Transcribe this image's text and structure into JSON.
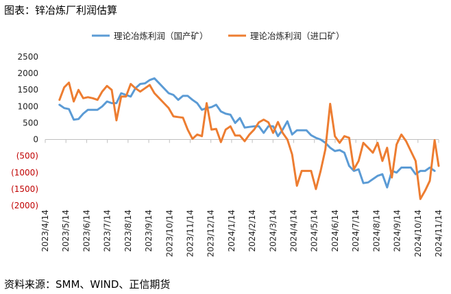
{
  "caption": "图表：锌冶炼厂利润估算",
  "source": "资料来源：SMM、WIND、正信期货",
  "chart_data": {
    "type": "line",
    "title": "",
    "xlabel": "",
    "ylabel": "",
    "ylim": [
      -2000,
      2500
    ],
    "ytick_values": [
      2500,
      2000,
      1500,
      1000,
      500,
      0,
      -500,
      -1000,
      -1500,
      -2000
    ],
    "ytick_labels": [
      "2500",
      "2000",
      "1500",
      "1000",
      "500",
      "0",
      "(500)",
      "(1000)",
      "(1500)",
      "(2000)"
    ],
    "xtick_labels": [
      "2023/4/14",
      "2023/5/14",
      "2023/6/14",
      "2023/7/14",
      "2023/8/14",
      "2023/9/14",
      "2023/10/14",
      "2023/11/14",
      "2023/12/14",
      "2024/1/14",
      "2024/2/14",
      "2024/3/14",
      "2024/4/14",
      "2024/5/14",
      "2024/6/14",
      "2024/7/14",
      "2024/8/14",
      "2024/9/14",
      "2024/10/14",
      "2024/11/14"
    ],
    "grid": false,
    "legend_position": "top-center",
    "series": [
      {
        "name": "理论冶炼利润（国产矿）",
        "color": "#5b9bd5",
        "points": [
          [
            "2023-05-05",
            1050
          ],
          [
            "2023-05-12",
            950
          ],
          [
            "2023-05-19",
            920
          ],
          [
            "2023-05-26",
            600
          ],
          [
            "2023-06-02",
            620
          ],
          [
            "2023-06-09",
            780
          ],
          [
            "2023-06-16",
            900
          ],
          [
            "2023-06-23",
            900
          ],
          [
            "2023-06-30",
            900
          ],
          [
            "2023-07-07",
            1000
          ],
          [
            "2023-07-14",
            1150
          ],
          [
            "2023-07-21",
            1100
          ],
          [
            "2023-07-28",
            1100
          ],
          [
            "2023-08-04",
            1400
          ],
          [
            "2023-08-11",
            1350
          ],
          [
            "2023-08-18",
            1300
          ],
          [
            "2023-08-25",
            1550
          ],
          [
            "2023-09-01",
            1680
          ],
          [
            "2023-09-08",
            1700
          ],
          [
            "2023-09-15",
            1800
          ],
          [
            "2023-09-22",
            1850
          ],
          [
            "2023-09-29",
            1700
          ],
          [
            "2023-10-06",
            1550
          ],
          [
            "2023-10-13",
            1400
          ],
          [
            "2023-10-20",
            1350
          ],
          [
            "2023-10-27",
            1200
          ],
          [
            "2023-11-03",
            1320
          ],
          [
            "2023-11-10",
            1320
          ],
          [
            "2023-11-17",
            1200
          ],
          [
            "2023-11-24",
            1100
          ],
          [
            "2023-12-01",
            900
          ],
          [
            "2023-12-08",
            950
          ],
          [
            "2023-12-15",
            980
          ],
          [
            "2023-12-22",
            1050
          ],
          [
            "2023-12-29",
            850
          ],
          [
            "2024-01-05",
            780
          ],
          [
            "2024-01-12",
            750
          ],
          [
            "2024-01-19",
            500
          ],
          [
            "2024-01-26",
            650
          ],
          [
            "2024-02-02",
            360
          ],
          [
            "2024-02-09",
            380
          ],
          [
            "2024-02-16",
            400
          ],
          [
            "2024-02-23",
            400
          ],
          [
            "2024-03-01",
            200
          ],
          [
            "2024-03-08",
            400
          ],
          [
            "2024-03-15",
            400
          ],
          [
            "2024-03-22",
            100
          ],
          [
            "2024-03-29",
            300
          ],
          [
            "2024-04-05",
            550
          ],
          [
            "2024-04-12",
            150
          ],
          [
            "2024-04-19",
            280
          ],
          [
            "2024-04-26",
            280
          ],
          [
            "2024-05-03",
            280
          ],
          [
            "2024-05-10",
            130
          ],
          [
            "2024-05-17",
            50
          ],
          [
            "2024-05-24",
            0
          ],
          [
            "2024-05-31",
            -100
          ],
          [
            "2024-06-07",
            -250
          ],
          [
            "2024-06-14",
            -350
          ],
          [
            "2024-06-21",
            -320
          ],
          [
            "2024-06-28",
            -400
          ],
          [
            "2024-07-05",
            -800
          ],
          [
            "2024-07-12",
            -950
          ],
          [
            "2024-07-19",
            -900
          ],
          [
            "2024-07-26",
            -1320
          ],
          [
            "2024-08-02",
            -1300
          ],
          [
            "2024-08-09",
            -1200
          ],
          [
            "2024-08-16",
            -1100
          ],
          [
            "2024-08-23",
            -1050
          ],
          [
            "2024-08-30",
            -1450
          ],
          [
            "2024-09-06",
            -950
          ],
          [
            "2024-09-13",
            -1000
          ],
          [
            "2024-09-20",
            -850
          ],
          [
            "2024-09-27",
            -850
          ],
          [
            "2024-10-04",
            -850
          ],
          [
            "2024-10-11",
            -1050
          ],
          [
            "2024-10-18",
            -950
          ],
          [
            "2024-10-25",
            -950
          ],
          [
            "2024-11-01",
            -850
          ],
          [
            "2024-11-08",
            -950
          ]
        ]
      },
      {
        "name": "理论冶炼利润（进口矿）",
        "color": "#ed7d31",
        "points": [
          [
            "2023-05-05",
            1200
          ],
          [
            "2023-05-12",
            1580
          ],
          [
            "2023-05-19",
            1720
          ],
          [
            "2023-05-26",
            1150
          ],
          [
            "2023-06-02",
            1500
          ],
          [
            "2023-06-09",
            1250
          ],
          [
            "2023-06-16",
            1280
          ],
          [
            "2023-06-23",
            1250
          ],
          [
            "2023-06-30",
            1200
          ],
          [
            "2023-07-07",
            1450
          ],
          [
            "2023-07-14",
            1620
          ],
          [
            "2023-07-21",
            1500
          ],
          [
            "2023-07-28",
            580
          ],
          [
            "2023-08-04",
            1300
          ],
          [
            "2023-08-11",
            1300
          ],
          [
            "2023-08-18",
            1680
          ],
          [
            "2023-08-25",
            1550
          ],
          [
            "2023-09-01",
            1450
          ],
          [
            "2023-09-08",
            1550
          ],
          [
            "2023-09-15",
            1650
          ],
          [
            "2023-09-22",
            1400
          ],
          [
            "2023-09-29",
            1250
          ],
          [
            "2023-10-06",
            1100
          ],
          [
            "2023-10-13",
            950
          ],
          [
            "2023-10-20",
            700
          ],
          [
            "2023-10-27",
            680
          ],
          [
            "2023-11-03",
            660
          ],
          [
            "2023-11-10",
            300
          ],
          [
            "2023-11-17",
            20
          ],
          [
            "2023-11-24",
            150
          ],
          [
            "2023-12-01",
            100
          ],
          [
            "2023-12-08",
            1100
          ],
          [
            "2023-12-15",
            300
          ],
          [
            "2023-12-22",
            320
          ],
          [
            "2023-12-29",
            -80
          ],
          [
            "2024-01-05",
            300
          ],
          [
            "2024-01-12",
            400
          ],
          [
            "2024-01-19",
            120
          ],
          [
            "2024-01-26",
            120
          ],
          [
            "2024-02-02",
            -50
          ],
          [
            "2024-02-09",
            150
          ],
          [
            "2024-02-16",
            300
          ],
          [
            "2024-02-23",
            520
          ],
          [
            "2024-03-01",
            600
          ],
          [
            "2024-03-08",
            520
          ],
          [
            "2024-03-15",
            200
          ],
          [
            "2024-03-22",
            530
          ],
          [
            "2024-03-29",
            200
          ],
          [
            "2024-04-05",
            0
          ],
          [
            "2024-04-12",
            -450
          ],
          [
            "2024-04-19",
            -1400
          ],
          [
            "2024-04-26",
            -950
          ],
          [
            "2024-05-03",
            -950
          ],
          [
            "2024-05-10",
            -950
          ],
          [
            "2024-05-17",
            -1500
          ],
          [
            "2024-05-24",
            -950
          ],
          [
            "2024-05-31",
            -300
          ],
          [
            "2024-06-07",
            1080
          ],
          [
            "2024-06-14",
            100
          ],
          [
            "2024-06-21",
            -100
          ],
          [
            "2024-06-28",
            100
          ],
          [
            "2024-07-05",
            50
          ],
          [
            "2024-07-12",
            -900
          ],
          [
            "2024-07-19",
            -650
          ],
          [
            "2024-07-26",
            -100
          ],
          [
            "2024-08-02",
            -250
          ],
          [
            "2024-08-09",
            -400
          ],
          [
            "2024-08-16",
            -100
          ],
          [
            "2024-08-23",
            -650
          ],
          [
            "2024-08-30",
            -250
          ],
          [
            "2024-09-06",
            -1150
          ],
          [
            "2024-09-13",
            -150
          ],
          [
            "2024-09-20",
            150
          ],
          [
            "2024-09-27",
            -50
          ],
          [
            "2024-10-04",
            -350
          ],
          [
            "2024-10-11",
            -650
          ],
          [
            "2024-10-18",
            -1800
          ],
          [
            "2024-10-25",
            -1550
          ],
          [
            "2024-11-01",
            -1250
          ],
          [
            "2024-11-08",
            -20
          ],
          [
            "2024-11-14",
            -800
          ]
        ]
      }
    ]
  }
}
